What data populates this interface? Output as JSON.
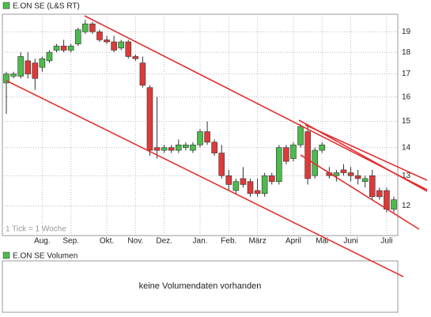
{
  "chart_data": {
    "type": "candlestick",
    "title": "E.ON SE (L&S RT)",
    "note": "1 Tick = 1 Woche",
    "categories": [
      null,
      null,
      null,
      null,
      null,
      "Aug.",
      null,
      null,
      null,
      "Sep.",
      null,
      null,
      null,
      null,
      "Okt.",
      null,
      null,
      null,
      "Nov.",
      null,
      null,
      null,
      "Dez.",
      null,
      null,
      null,
      null,
      "Jan.",
      null,
      null,
      null,
      "Feb.",
      null,
      null,
      null,
      "März",
      null,
      null,
      null,
      null,
      "April",
      null,
      null,
      null,
      "Mai",
      null,
      null,
      null,
      "Juni",
      null,
      null,
      null,
      null,
      "Juli",
      null
    ],
    "open": [
      16.6,
      16.9,
      16.9,
      17.6,
      17.5,
      17.3,
      17.6,
      18.1,
      18.3,
      18.1,
      18.4,
      19.0,
      19.4,
      19.0,
      18.6,
      18.5,
      18.2,
      18.5,
      17.8,
      17.5,
      16.4,
      14.0,
      13.9,
      14.0,
      13.9,
      14.0,
      13.9,
      14.1,
      14.6,
      14.2,
      13.8,
      13.0,
      12.5,
      12.9,
      12.8,
      12.5,
      12.4,
      13.0,
      12.8,
      14.0,
      13.6,
      14.1,
      14.6,
      13.0,
      13.9,
      13.1,
      13.0,
      13.2,
      13.1,
      13.0,
      12.8,
      13.0,
      12.5,
      12.5,
      11.9
    ],
    "high": [
      17.1,
      17.1,
      18.0,
      18.0,
      17.7,
      17.8,
      18.1,
      18.4,
      18.6,
      18.4,
      19.2,
      19.6,
      19.5,
      19.1,
      18.8,
      18.8,
      18.6,
      18.6,
      17.9,
      17.8,
      16.5,
      16.0,
      14.1,
      14.1,
      14.3,
      14.2,
      14.2,
      14.7,
      15.0,
      14.3,
      14.1,
      13.2,
      12.9,
      13.3,
      12.9,
      12.9,
      13.1,
      13.1,
      14.1,
      14.1,
      14.2,
      14.9,
      14.9,
      14.0,
      14.2,
      13.3,
      13.2,
      13.4,
      13.3,
      13.2,
      13.0,
      13.2,
      12.6,
      12.6,
      12.3
    ],
    "low": [
      15.3,
      16.8,
      16.8,
      16.8,
      16.3,
      17.1,
      17.5,
      18.0,
      18.0,
      18.0,
      18.3,
      18.9,
      18.9,
      18.5,
      18.4,
      18.0,
      18.1,
      17.7,
      17.6,
      16.4,
      13.7,
      13.6,
      13.8,
      13.8,
      13.8,
      13.9,
      13.8,
      14.0,
      14.1,
      13.7,
      12.9,
      12.5,
      12.4,
      12.6,
      12.3,
      12.3,
      12.3,
      12.7,
      12.7,
      13.4,
      13.5,
      14.0,
      12.7,
      12.9,
      13.8,
      12.9,
      12.8,
      13.0,
      12.8,
      12.7,
      12.6,
      12.2,
      12.2,
      11.8,
      11.8
    ],
    "close": [
      17.0,
      17.0,
      17.8,
      17.0,
      16.8,
      17.7,
      18.0,
      18.3,
      18.1,
      18.3,
      19.1,
      19.4,
      19.0,
      18.6,
      18.5,
      18.1,
      18.5,
      17.8,
      17.7,
      16.5,
      13.9,
      13.9,
      14.0,
      13.9,
      14.1,
      14.1,
      14.1,
      14.6,
      14.2,
      13.8,
      13.0,
      12.7,
      12.8,
      12.7,
      12.4,
      12.4,
      13.0,
      12.8,
      14.0,
      13.5,
      14.1,
      14.8,
      12.9,
      13.9,
      14.1,
      13.0,
      13.1,
      13.1,
      13.0,
      12.9,
      12.9,
      12.3,
      12.3,
      11.9,
      12.2
    ],
    "up_color": "#4cbb4c",
    "down_color": "#dd3a3a",
    "ylim": [
      11.1,
      19.9
    ],
    "yticks": [
      12,
      13,
      14,
      15,
      16,
      17,
      18,
      19
    ],
    "log_scale": true,
    "grid": true,
    "volume_title": "E.ON SE Volumen",
    "volume_note": "keine Volumendaten vorhanden"
  }
}
